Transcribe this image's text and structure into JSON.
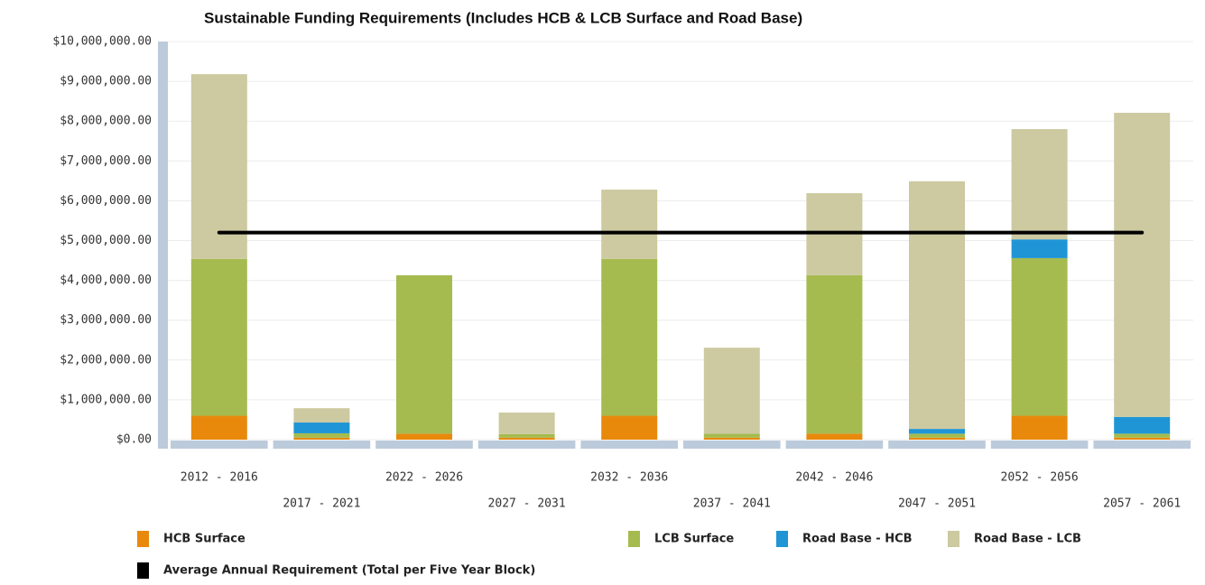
{
  "chart_data": {
    "type": "bar",
    "stacked": true,
    "title": "Sustainable Funding Requirements (Includes HCB & LCB Surface and Road Base)",
    "categories": [
      "2012 - 2016",
      "2017 - 2021",
      "2022 - 2026",
      "2027 - 2031",
      "2032 - 2036",
      "2037 - 2041",
      "2042 - 2046",
      "2047 - 2051",
      "2052 - 2056",
      "2057 - 2061"
    ],
    "series": [
      {
        "name": "HCB Surface",
        "color": "#e8890c",
        "values": [
          600000,
          50000,
          150000,
          50000,
          600000,
          50000,
          150000,
          50000,
          600000,
          50000
        ]
      },
      {
        "name": "LCB Surface",
        "color": "#a5bb4f",
        "values": [
          3940000,
          110000,
          3980000,
          90000,
          3940000,
          100000,
          3980000,
          100000,
          3960000,
          100000
        ]
      },
      {
        "name": "Road Base - HCB",
        "color": "#1f95d6",
        "values": [
          0,
          270000,
          0,
          0,
          0,
          0,
          0,
          120000,
          470000,
          420000
        ]
      },
      {
        "name": "Road Base - LCB",
        "color": "#cdc9a0",
        "values": [
          4640000,
          360000,
          0,
          540000,
          1740000,
          2160000,
          2060000,
          6220000,
          2770000,
          7640000
        ]
      },
      {
        "name": "Average Annual Requirement (Total per Five Year Block)",
        "color": "#000000",
        "type": "line",
        "values": [
          5200000,
          5200000,
          5200000,
          5200000,
          5200000,
          5200000,
          5200000,
          5200000,
          5200000,
          5200000
        ]
      }
    ],
    "ylim": [
      0,
      10000000
    ],
    "yticks": [
      {
        "value": 0,
        "label": "$0.00"
      },
      {
        "value": 1000000,
        "label": "$1,000,000.00"
      },
      {
        "value": 2000000,
        "label": "$2,000,000.00"
      },
      {
        "value": 3000000,
        "label": "$3,000,000.00"
      },
      {
        "value": 4000000,
        "label": "$4,000,000.00"
      },
      {
        "value": 5000000,
        "label": "$5,000,000.00"
      },
      {
        "value": 6000000,
        "label": "$6,000,000.00"
      },
      {
        "value": 7000000,
        "label": "$7,000,000.00"
      },
      {
        "value": 8000000,
        "label": "$8,000,000.00"
      },
      {
        "value": 9000000,
        "label": "$9,000,000.00"
      },
      {
        "value": 10000000,
        "label": "$10,000,000.00"
      }
    ],
    "grid": true
  }
}
